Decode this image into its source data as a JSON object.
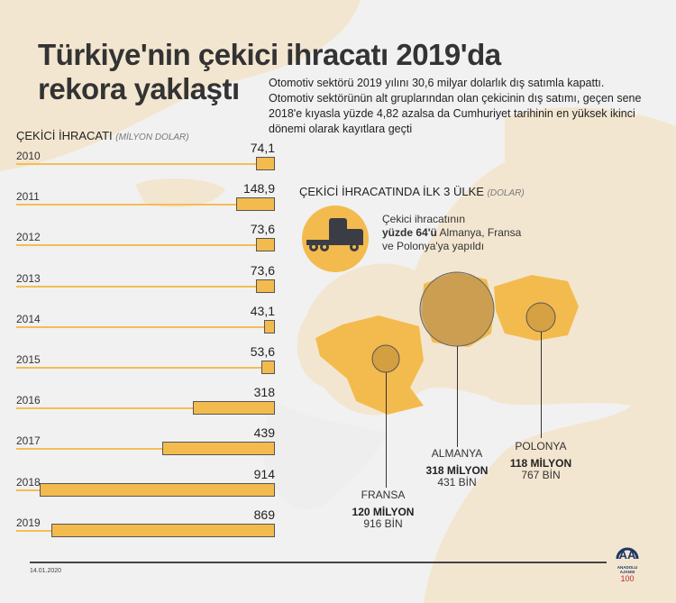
{
  "title": "Türkiye'nin çekici ihracatı 2019'da rekora yaklaştı",
  "intro": "Otomotiv sektörü 2019 yılını 30,6 milyar dolarlık dış satımla kapattı. Otomotiv sektörünün alt gruplarından olan çekicinin dış satımı, geçen sene 2018'e kıyasla yüzde 4,82 azalsa da Cumhuriyet tarihinin en yüksek ikinci dönemi olarak kayıtlara geçti",
  "chart_data": {
    "type": "bar",
    "orientation": "horizontal",
    "title": "ÇEKİCİ İHRACATI",
    "unit": "(MİLYON DOLAR)",
    "categories": [
      "2010",
      "2011",
      "2012",
      "2013",
      "2014",
      "2015",
      "2016",
      "2017",
      "2018",
      "2019"
    ],
    "values": [
      74.1,
      148.9,
      73.6,
      73.6,
      43.1,
      53.6,
      318,
      439,
      914,
      869
    ],
    "labels": [
      "74,1",
      "148,9",
      "73,6",
      "73,6",
      "43,1",
      "53,6",
      "318",
      "439",
      "914",
      "869"
    ],
    "bar_color": "#f3bb4e"
  },
  "countries": {
    "title": "ÇEKİCİ İHRACATINDA İLK 3 ÜLKE",
    "unit": "(DOLAR)",
    "note_pre": "Çekici ihracatının",
    "note_bold": "yüzde 64'ü",
    "note_post": " Almanya, Fransa ve Polonya'ya yapıldı",
    "items": [
      {
        "name": "ALMANYA",
        "value": "318 MİLYON",
        "sub": "431 BİN"
      },
      {
        "name": "POLONYA",
        "value": "118 MİLYON",
        "sub": "767 BİN"
      },
      {
        "name": "FRANSA",
        "value": "120 MİLYON",
        "sub": "916 BİN"
      }
    ]
  },
  "date": "14.01.2020",
  "logo": "ANADOLU AJANSI"
}
